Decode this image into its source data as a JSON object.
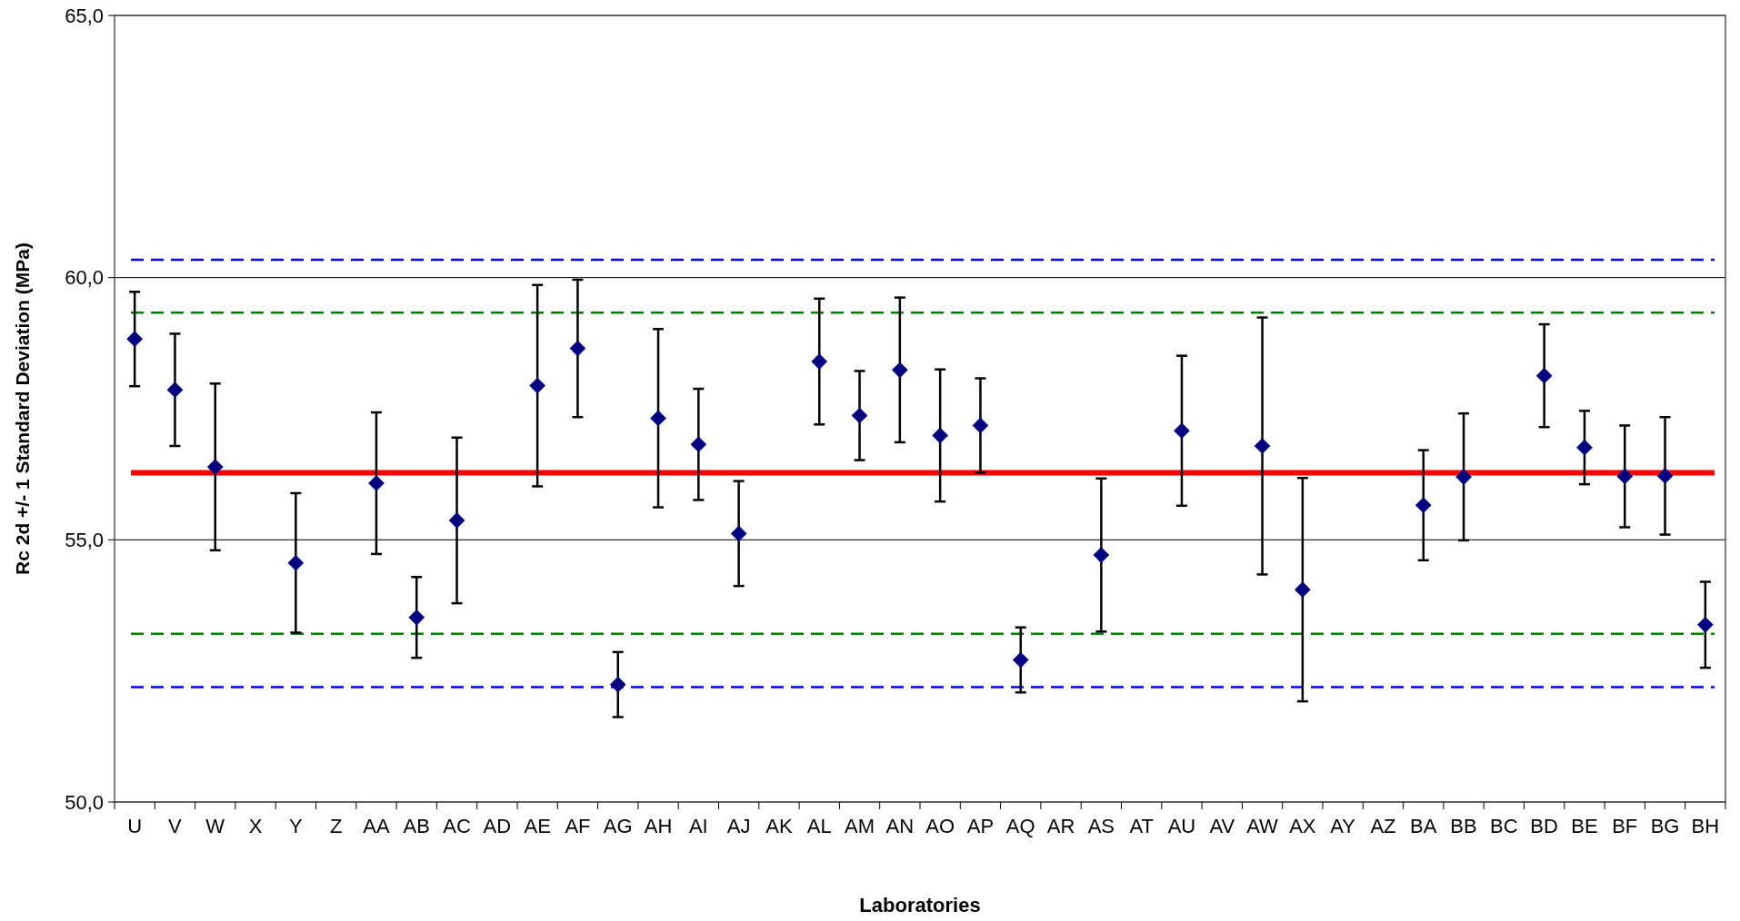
{
  "chart_data": {
    "type": "scatter",
    "xlabel": "Laboratories",
    "ylabel": "Rc 2d +/- 1 Standard Deviation (MPa)",
    "categories": [
      "U",
      "V",
      "W",
      "X",
      "Y",
      "Z",
      "AA",
      "AB",
      "AC",
      "AD",
      "AE",
      "AF",
      "AG",
      "AH",
      "AI",
      "AJ",
      "AK",
      "AL",
      "AM",
      "AN",
      "AO",
      "AP",
      "AQ",
      "AR",
      "AS",
      "AT",
      "AU",
      "AV",
      "AW",
      "AX",
      "AY",
      "AZ",
      "BA",
      "BB",
      "BC",
      "BD",
      "BE",
      "BF",
      "BG",
      "BH"
    ],
    "series": [
      {
        "color": "#000080",
        "values": [
          58.83,
          57.86,
          56.39,
          null,
          54.56,
          null,
          56.08,
          53.52,
          55.37,
          null,
          57.94,
          58.65,
          52.24,
          57.32,
          56.82,
          55.12,
          null,
          58.4,
          57.37,
          58.24,
          56.99,
          57.18,
          52.71,
          null,
          54.71,
          null,
          57.08,
          null,
          56.79,
          54.05,
          null,
          null,
          55.66,
          56.2,
          null,
          58.13,
          56.76,
          56.21,
          56.22,
          53.38
        ],
        "errors": [
          0.9,
          1.07,
          1.59,
          null,
          1.33,
          null,
          1.35,
          0.77,
          1.58,
          null,
          1.92,
          1.31,
          0.62,
          1.7,
          1.06,
          1.0,
          null,
          1.2,
          0.85,
          1.38,
          1.26,
          0.9,
          0.62,
          null,
          1.46,
          null,
          1.43,
          null,
          2.45,
          2.13,
          null,
          null,
          1.05,
          1.21,
          null,
          0.98,
          0.7,
          0.97,
          1.12,
          0.82
        ]
      }
    ],
    "ylim": [
      50,
      65
    ],
    "yticks": [
      {
        "value": 50,
        "label": "50,0"
      },
      {
        "value": 55,
        "label": "55,0"
      },
      {
        "value": 60,
        "label": "60,0"
      },
      {
        "value": 65,
        "label": "65,0"
      }
    ],
    "grid": "y",
    "marker": "diamond",
    "ref_lines": [
      {
        "axis": "y",
        "value": 56.28,
        "color": "#ff0000",
        "line_style": "solid"
      },
      {
        "axis": "y",
        "value": 59.33,
        "color": "#008000",
        "line_style": "dashed"
      },
      {
        "axis": "y",
        "value": 53.21,
        "color": "#008000",
        "line_style": "dashed"
      },
      {
        "axis": "y",
        "value": 60.34,
        "color": "#0000ff",
        "line_style": "dashed"
      },
      {
        "axis": "y",
        "value": 52.19,
        "color": "#0000ff",
        "line_style": "dashed"
      }
    ]
  }
}
